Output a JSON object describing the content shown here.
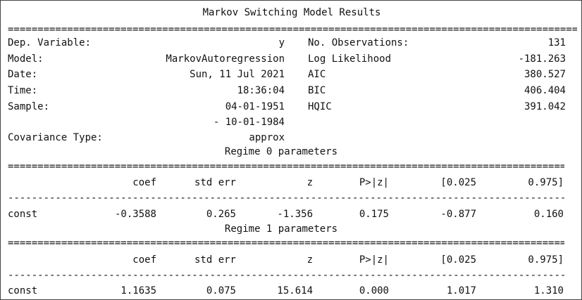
{
  "title": "Markov Switching Model Results",
  "summary": {
    "left": [
      {
        "label": "Dep. Variable:",
        "value": "y"
      },
      {
        "label": "Model:",
        "value": "MarkovAutoregression"
      },
      {
        "label": "Date:",
        "value": "Sun, 11 Jul 2021"
      },
      {
        "label": "Time:",
        "value": "18:36:04"
      },
      {
        "label": "Sample:",
        "value": "04-01-1951"
      }
    ],
    "sample_end": "- 10-01-1984",
    "covariance": {
      "label": "Covariance Type:",
      "value": "approx"
    },
    "right": [
      {
        "label": "No. Observations:",
        "value": "131"
      },
      {
        "label": "Log Likelihood",
        "value": "-181.263"
      },
      {
        "label": "AIC",
        "value": "380.527"
      },
      {
        "label": "BIC",
        "value": "406.404"
      },
      {
        "label": "HQIC",
        "value": "391.042"
      }
    ]
  },
  "columns": [
    "coef",
    "std err",
    "z",
    "P>|z|",
    "[0.025",
    "0.975]"
  ],
  "regimes": [
    {
      "title": "Regime 0 parameters",
      "row": {
        "name": "const",
        "values": [
          "-0.3588",
          "0.265",
          "-1.356",
          "0.175",
          "-0.877",
          "0.160"
        ]
      }
    },
    {
      "title": "Regime 1 parameters",
      "row": {
        "name": "const",
        "values": [
          "1.1635",
          "0.075",
          "15.614",
          "0.000",
          "1.017",
          "1.310"
        ]
      }
    }
  ],
  "rules": {
    "double_wide": "================================================================================================",
    "double_table": "==================================================================================================",
    "single_table": "--------------------------------------------------------------------------------------------------"
  }
}
